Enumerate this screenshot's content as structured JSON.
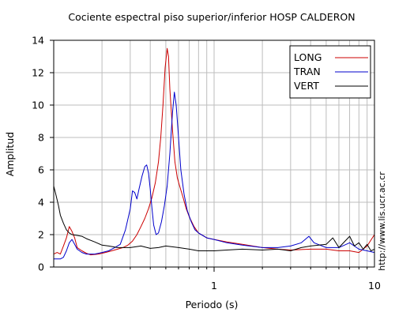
{
  "chart_data": {
    "type": "line",
    "title": "Cociente espectral piso superior/inferior  HOSP CALDERON",
    "xlabel": "Periodo (s)",
    "ylabel": "Amplitud",
    "x_scale": "log",
    "xlim": [
      0.1,
      10
    ],
    "ylim": [
      0,
      14
    ],
    "x_tick_labels": [
      {
        "value": 1,
        "label": "1"
      },
      {
        "value": 10,
        "label": "10"
      }
    ],
    "y_ticks": [
      0,
      2,
      4,
      6,
      8,
      10,
      12,
      14
    ],
    "y_tick_labels": [
      "0",
      "2",
      "4",
      "6",
      "8",
      "10",
      "12",
      "14"
    ],
    "grid": true,
    "legend_position": "top-right",
    "series": [
      {
        "name": "LONG",
        "color": "#cc0000",
        "points": [
          [
            0.1,
            0.8
          ],
          [
            0.105,
            0.9
          ],
          [
            0.11,
            0.8
          ],
          [
            0.115,
            1.3
          ],
          [
            0.12,
            1.8
          ],
          [
            0.125,
            2.5
          ],
          [
            0.13,
            2.2
          ],
          [
            0.135,
            1.8
          ],
          [
            0.14,
            1.2
          ],
          [
            0.15,
            1.0
          ],
          [
            0.16,
            0.85
          ],
          [
            0.17,
            0.75
          ],
          [
            0.19,
            0.8
          ],
          [
            0.21,
            0.9
          ],
          [
            0.23,
            1.0
          ],
          [
            0.25,
            1.1
          ],
          [
            0.27,
            1.2
          ],
          [
            0.29,
            1.35
          ],
          [
            0.31,
            1.6
          ],
          [
            0.33,
            2.0
          ],
          [
            0.35,
            2.5
          ],
          [
            0.37,
            3.0
          ],
          [
            0.39,
            3.6
          ],
          [
            0.41,
            4.3
          ],
          [
            0.43,
            5.2
          ],
          [
            0.45,
            6.5
          ],
          [
            0.465,
            8.0
          ],
          [
            0.48,
            10.0
          ],
          [
            0.495,
            12.3
          ],
          [
            0.51,
            13.5
          ],
          [
            0.52,
            13.0
          ],
          [
            0.53,
            11.0
          ],
          [
            0.55,
            8.5
          ],
          [
            0.57,
            6.5
          ],
          [
            0.59,
            5.5
          ],
          [
            0.61,
            5.0
          ],
          [
            0.64,
            4.3
          ],
          [
            0.67,
            3.6
          ],
          [
            0.7,
            3.1
          ],
          [
            0.75,
            2.5
          ],
          [
            0.8,
            2.1
          ],
          [
            0.9,
            1.8
          ],
          [
            1.0,
            1.7
          ],
          [
            1.2,
            1.55
          ],
          [
            1.5,
            1.4
          ],
          [
            2.0,
            1.2
          ],
          [
            2.5,
            1.1
          ],
          [
            3.0,
            1.05
          ],
          [
            4.0,
            1.1
          ],
          [
            5.0,
            1.1
          ],
          [
            6.0,
            1.0
          ],
          [
            7.0,
            1.0
          ],
          [
            8.0,
            0.9
          ],
          [
            9.0,
            1.3
          ],
          [
            10.0,
            2.0
          ]
        ]
      },
      {
        "name": "TRAN",
        "color": "#0000cc",
        "points": [
          [
            0.1,
            0.5
          ],
          [
            0.11,
            0.5
          ],
          [
            0.115,
            0.6
          ],
          [
            0.12,
            1.0
          ],
          [
            0.125,
            1.5
          ],
          [
            0.13,
            1.7
          ],
          [
            0.135,
            1.4
          ],
          [
            0.14,
            1.1
          ],
          [
            0.15,
            0.9
          ],
          [
            0.16,
            0.8
          ],
          [
            0.18,
            0.8
          ],
          [
            0.2,
            0.9
          ],
          [
            0.22,
            1.0
          ],
          [
            0.24,
            1.2
          ],
          [
            0.26,
            1.4
          ],
          [
            0.28,
            2.3
          ],
          [
            0.3,
            3.6
          ],
          [
            0.31,
            4.7
          ],
          [
            0.32,
            4.6
          ],
          [
            0.33,
            4.2
          ],
          [
            0.34,
            4.8
          ],
          [
            0.355,
            5.6
          ],
          [
            0.37,
            6.2
          ],
          [
            0.38,
            6.3
          ],
          [
            0.39,
            5.8
          ],
          [
            0.4,
            4.8
          ],
          [
            0.41,
            3.6
          ],
          [
            0.42,
            2.6
          ],
          [
            0.435,
            2.0
          ],
          [
            0.45,
            2.1
          ],
          [
            0.47,
            2.8
          ],
          [
            0.49,
            3.8
          ],
          [
            0.51,
            5.0
          ],
          [
            0.53,
            7.0
          ],
          [
            0.55,
            9.5
          ],
          [
            0.565,
            10.8
          ],
          [
            0.58,
            10.0
          ],
          [
            0.6,
            8.0
          ],
          [
            0.62,
            6.0
          ],
          [
            0.65,
            4.5
          ],
          [
            0.68,
            3.5
          ],
          [
            0.72,
            2.8
          ],
          [
            0.76,
            2.3
          ],
          [
            0.8,
            2.1
          ],
          [
            0.9,
            1.8
          ],
          [
            1.0,
            1.7
          ],
          [
            1.2,
            1.5
          ],
          [
            1.5,
            1.35
          ],
          [
            2.0,
            1.2
          ],
          [
            2.5,
            1.2
          ],
          [
            3.0,
            1.3
          ],
          [
            3.5,
            1.5
          ],
          [
            3.9,
            1.9
          ],
          [
            4.2,
            1.5
          ],
          [
            5.0,
            1.2
          ],
          [
            6.0,
            1.2
          ],
          [
            7.0,
            1.5
          ],
          [
            8.0,
            1.1
          ],
          [
            9.0,
            1.0
          ],
          [
            10.0,
            0.9
          ]
        ]
      },
      {
        "name": "VERT",
        "color": "#000000",
        "points": [
          [
            0.1,
            5.0
          ],
          [
            0.103,
            4.5
          ],
          [
            0.107,
            3.8
          ],
          [
            0.11,
            3.2
          ],
          [
            0.115,
            2.7
          ],
          [
            0.12,
            2.3
          ],
          [
            0.125,
            2.1
          ],
          [
            0.13,
            2.0
          ],
          [
            0.14,
            1.95
          ],
          [
            0.15,
            1.9
          ],
          [
            0.16,
            1.75
          ],
          [
            0.18,
            1.55
          ],
          [
            0.2,
            1.35
          ],
          [
            0.22,
            1.3
          ],
          [
            0.25,
            1.2
          ],
          [
            0.3,
            1.2
          ],
          [
            0.35,
            1.3
          ],
          [
            0.4,
            1.15
          ],
          [
            0.45,
            1.2
          ],
          [
            0.5,
            1.3
          ],
          [
            0.6,
            1.2
          ],
          [
            0.7,
            1.1
          ],
          [
            0.8,
            1.0
          ],
          [
            0.9,
            1.0
          ],
          [
            1.0,
            1.0
          ],
          [
            1.2,
            1.05
          ],
          [
            1.5,
            1.1
          ],
          [
            2.0,
            1.05
          ],
          [
            2.5,
            1.1
          ],
          [
            3.0,
            1.0
          ],
          [
            3.5,
            1.2
          ],
          [
            4.0,
            1.3
          ],
          [
            5.0,
            1.4
          ],
          [
            5.5,
            1.8
          ],
          [
            6.0,
            1.2
          ],
          [
            7.0,
            1.9
          ],
          [
            7.5,
            1.3
          ],
          [
            8.0,
            1.5
          ],
          [
            8.5,
            1.1
          ],
          [
            9.0,
            1.4
          ],
          [
            9.5,
            1.0
          ],
          [
            10.0,
            1.1
          ]
        ]
      }
    ],
    "side_note": "http://www.lis.ucr.ac.cr"
  }
}
